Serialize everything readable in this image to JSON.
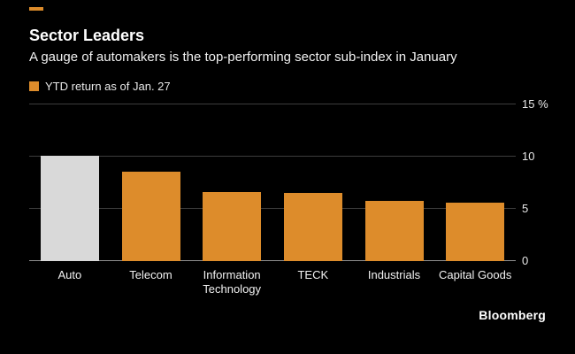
{
  "header": {
    "title": "Sector Leaders",
    "subtitle": "A gauge of automakers is the top-performing sector sub-index in January",
    "legend_label": "YTD return as of Jan. 27"
  },
  "footer": {
    "brand": "Bloomberg"
  },
  "colors": {
    "background": "#000000",
    "accent_orange": "#dd8c2b",
    "highlight_gray": "#d9d9d9",
    "text": "#ffffff",
    "gridline": "#3d3d3d",
    "baseline": "#8f8f8f"
  },
  "chart_data": {
    "type": "bar",
    "title": "Sector Leaders",
    "subtitle": "A gauge of automakers is the top-performing sector sub-index in January",
    "legend": [
      "YTD return as of Jan. 27"
    ],
    "categories": [
      "Auto",
      "Telecom",
      "Information Technology",
      "TECK",
      "Industrials",
      "Capital Goods"
    ],
    "values": [
      10.1,
      8.6,
      6.6,
      6.5,
      5.8,
      5.6
    ],
    "bar_colors": [
      "#d9d9d9",
      "#dd8c2b",
      "#dd8c2b",
      "#dd8c2b",
      "#dd8c2b",
      "#dd8c2b"
    ],
    "xlabel": "",
    "ylabel": "%",
    "ylim": [
      0,
      15
    ],
    "yticks": [
      0,
      5,
      10,
      15
    ],
    "ytick_labels": [
      "0",
      "5",
      "10",
      "15 %"
    ],
    "grid": true,
    "legend_position": "top-left",
    "background": "#000000"
  }
}
